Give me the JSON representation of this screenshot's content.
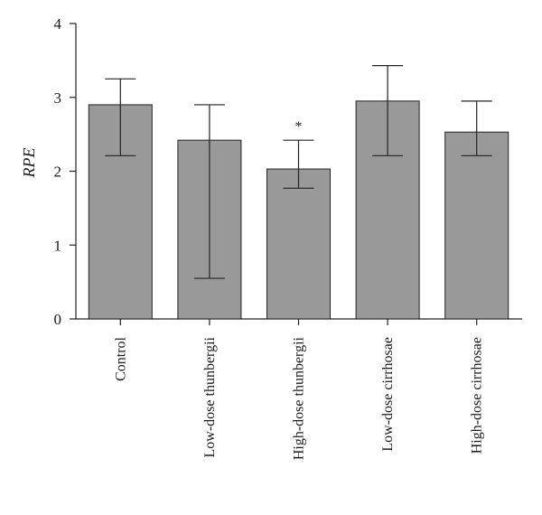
{
  "chart_data": {
    "type": "bar",
    "title": "",
    "xlabel": "",
    "ylabel": "RPE",
    "ylim": [
      0,
      4
    ],
    "yticks": [
      0,
      1,
      2,
      3,
      4
    ],
    "grid": false,
    "legend": "none",
    "categories": [
      "Control",
      "Low-dose thunbergii",
      "High-dose thunbergii",
      "Low-dose cirrhosae",
      "High-dose cirrhosae"
    ],
    "values": [
      2.9,
      2.42,
      2.03,
      2.95,
      2.53
    ],
    "error_low": [
      2.21,
      0.55,
      1.77,
      2.21,
      2.21
    ],
    "error_high": [
      3.25,
      2.9,
      2.42,
      3.43,
      2.95
    ],
    "annotations": [
      {
        "category": "High-dose thunbergii",
        "text": "*"
      }
    ],
    "bar_color": "#999999",
    "bar_edge_color": "#222222"
  }
}
